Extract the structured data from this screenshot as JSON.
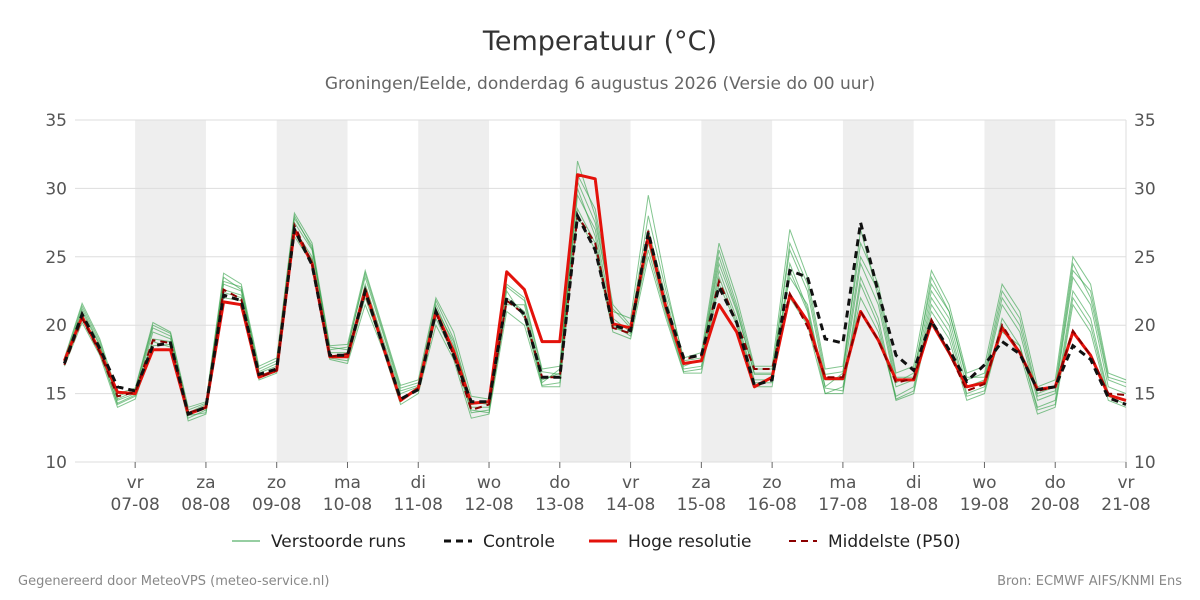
{
  "colors": {
    "perturbed": "#2e9e45",
    "control": "#111111",
    "hires": "#e3120b",
    "median": "#8b0000",
    "weekend_band": "#eeeeee",
    "grid": "#dddddd"
  },
  "footer": {
    "left": "Gegenereerd door MeteoVPS (meteo-service.nl)",
    "right": "Bron: ECMWF AIFS/KNMI Ens"
  },
  "chart_data": {
    "type": "line",
    "title": "Temperatuur (°C)",
    "subtitle": "Groningen/Eelde, donderdag  6 augustus 2026 (Versie do 00 uur)",
    "ylim": [
      10,
      35
    ],
    "yticks": [
      10,
      15,
      20,
      25,
      30,
      35
    ],
    "x_range_days": [
      0.15,
      15.0
    ],
    "day_ticks": [
      {
        "day": 1,
        "weekday": "vr",
        "date": "07-08"
      },
      {
        "day": 2,
        "weekday": "za",
        "date": "08-08"
      },
      {
        "day": 3,
        "weekday": "zo",
        "date": "09-08"
      },
      {
        "day": 4,
        "weekday": "ma",
        "date": "10-08"
      },
      {
        "day": 5,
        "weekday": "di",
        "date": "11-08"
      },
      {
        "day": 6,
        "weekday": "wo",
        "date": "12-08"
      },
      {
        "day": 7,
        "weekday": "do",
        "date": "13-08"
      },
      {
        "day": 8,
        "weekday": "vr",
        "date": "14-08"
      },
      {
        "day": 9,
        "weekday": "za",
        "date": "15-08"
      },
      {
        "day": 10,
        "weekday": "zo",
        "date": "16-08"
      },
      {
        "day": 11,
        "weekday": "ma",
        "date": "17-08"
      },
      {
        "day": 12,
        "weekday": "di",
        "date": "18-08"
      },
      {
        "day": 13,
        "weekday": "wo",
        "date": "19-08"
      },
      {
        "day": 14,
        "weekday": "do",
        "date": "20-08"
      },
      {
        "day": 15,
        "weekday": "vr",
        "date": "21-08"
      }
    ],
    "shaded_days": [
      [
        1,
        2
      ],
      [
        3,
        4
      ],
      [
        5,
        6
      ],
      [
        7,
        8
      ],
      [
        9,
        10
      ],
      [
        11,
        12
      ],
      [
        13,
        14
      ]
    ],
    "grid": true,
    "legend_position": "bottom",
    "x": [
      0.0,
      0.25,
      0.5,
      0.75,
      1.0,
      1.25,
      1.5,
      1.75,
      2.0,
      2.25,
      2.5,
      2.75,
      3.0,
      3.25,
      3.5,
      3.75,
      4.0,
      4.25,
      4.5,
      4.75,
      5.0,
      5.25,
      5.5,
      5.75,
      6.0,
      6.25,
      6.5,
      6.75,
      7.0,
      7.25,
      7.5,
      7.75,
      8.0,
      8.25,
      8.5,
      8.75,
      9.0,
      9.25,
      9.5,
      9.75,
      10.0,
      10.25,
      10.5,
      10.75,
      11.0,
      11.25,
      11.5,
      11.75,
      12.0,
      12.25,
      12.5,
      12.75,
      13.0,
      13.25,
      13.5,
      13.75,
      14.0,
      14.25,
      14.5,
      14.75,
      15.0
    ],
    "series": [
      {
        "name": "Verstoorde runs",
        "style": "ensemble",
        "members": [
          [
            17.3,
            21.0,
            18.5,
            14.5,
            15.0,
            19.5,
            19.0,
            13.5,
            14.0,
            23.0,
            22.5,
            16.5,
            17.0,
            27.5,
            25.5,
            18.0,
            18.0,
            23.0,
            19.0,
            15.0,
            15.5,
            21.5,
            18.5,
            14.0,
            14.0,
            22.0,
            21.0,
            16.0,
            16.5,
            29.5,
            27.0,
            20.5,
            19.5,
            26.5,
            21.5,
            17.0,
            17.5,
            24.5,
            21.0,
            16.5,
            16.5,
            25.5,
            22.5,
            16.0,
            16.0,
            24.5,
            21.5,
            15.5,
            16.0,
            22.5,
            20.5,
            15.5,
            16.0,
            21.5,
            19.5,
            14.5,
            15.0,
            23.5,
            21.5,
            15.5,
            15.0
          ],
          [
            17.0,
            20.2,
            17.8,
            14.0,
            14.6,
            18.5,
            18.6,
            13.0,
            13.5,
            22.0,
            21.8,
            16.0,
            16.5,
            26.5,
            24.5,
            17.5,
            17.2,
            21.5,
            18.2,
            14.2,
            15.0,
            20.0,
            17.5,
            13.2,
            13.5,
            21.0,
            20.0,
            15.5,
            15.5,
            28.0,
            25.5,
            19.5,
            19.0,
            25.0,
            20.5,
            16.5,
            16.5,
            23.0,
            20.0,
            15.5,
            15.5,
            24.0,
            21.0,
            15.0,
            15.0,
            23.0,
            20.0,
            14.5,
            15.0,
            21.0,
            19.0,
            14.5,
            15.0,
            20.0,
            18.0,
            13.5,
            14.0,
            21.5,
            19.5,
            14.5,
            14.0
          ],
          [
            17.6,
            21.6,
            19.0,
            15.0,
            15.4,
            20.2,
            19.5,
            14.0,
            14.4,
            23.8,
            23.0,
            17.0,
            17.6,
            28.2,
            26.0,
            18.5,
            18.6,
            24.0,
            19.8,
            15.6,
            16.0,
            22.0,
            19.5,
            14.8,
            14.6,
            23.0,
            22.0,
            16.8,
            17.0,
            31.0,
            28.5,
            21.5,
            20.0,
            28.0,
            22.5,
            17.6,
            18.0,
            26.0,
            22.0,
            17.0,
            17.0,
            27.0,
            23.5,
            16.8,
            17.0,
            26.0,
            23.0,
            16.5,
            17.0,
            24.0,
            21.5,
            16.5,
            17.0,
            23.0,
            21.0,
            15.5,
            16.0,
            25.0,
            23.0,
            16.5,
            16.0
          ],
          [
            17.2,
            20.8,
            18.2,
            14.2,
            14.8,
            19.0,
            18.8,
            13.2,
            13.8,
            22.6,
            22.2,
            16.3,
            16.8,
            27.0,
            25.0,
            17.8,
            17.6,
            22.5,
            18.6,
            14.6,
            15.2,
            21.0,
            18.0,
            13.6,
            13.8,
            21.5,
            21.5,
            16.2,
            16.2,
            30.0,
            26.5,
            20.0,
            19.2,
            26.0,
            21.0,
            16.8,
            17.0,
            24.0,
            20.5,
            16.0,
            16.0,
            22.0,
            20.0,
            15.0,
            15.5,
            22.0,
            19.5,
            14.8,
            15.5,
            22.0,
            20.0,
            15.0,
            15.5,
            19.5,
            18.5,
            14.0,
            14.5,
            22.5,
            20.5,
            15.0,
            14.5
          ],
          [
            17.4,
            21.2,
            18.6,
            14.6,
            15.2,
            19.8,
            19.2,
            13.6,
            14.2,
            23.2,
            22.8,
            16.6,
            17.2,
            27.8,
            25.8,
            18.2,
            18.4,
            23.5,
            19.4,
            15.2,
            15.6,
            21.8,
            19.0,
            14.4,
            14.2,
            22.5,
            20.5,
            15.8,
            16.8,
            32.0,
            28.0,
            21.0,
            20.5,
            29.5,
            23.0,
            17.4,
            17.6,
            25.5,
            21.5,
            16.8,
            16.8,
            23.5,
            21.5,
            15.5,
            16.5,
            27.0,
            22.0,
            15.8,
            16.5,
            23.0,
            21.0,
            16.0,
            16.5,
            22.5,
            20.5,
            15.0,
            15.5,
            24.5,
            22.0,
            16.0,
            15.5
          ],
          [
            17.1,
            20.5,
            18.0,
            14.3,
            14.9,
            18.8,
            18.4,
            13.4,
            13.6,
            22.4,
            22.0,
            16.2,
            16.6,
            26.8,
            24.8,
            17.6,
            17.4,
            22.0,
            18.4,
            14.4,
            15.4,
            20.5,
            17.8,
            13.8,
            13.6,
            21.8,
            20.8,
            15.6,
            15.8,
            28.5,
            26.0,
            19.8,
            19.4,
            25.5,
            20.8,
            16.6,
            16.8,
            23.5,
            20.2,
            15.8,
            15.8,
            24.5,
            21.2,
            15.4,
            15.2,
            23.5,
            20.5,
            14.6,
            15.2,
            21.5,
            19.5,
            14.8,
            15.2,
            20.5,
            18.5,
            13.8,
            14.2,
            22.0,
            20.0,
            14.8,
            14.2
          ],
          [
            17.5,
            21.4,
            18.8,
            14.8,
            15.3,
            20.0,
            19.4,
            13.8,
            14.3,
            23.5,
            22.6,
            16.8,
            17.4,
            28.0,
            25.6,
            18.4,
            18.2,
            23.8,
            19.6,
            15.4,
            15.8,
            21.2,
            18.8,
            14.2,
            14.4,
            22.8,
            21.8,
            16.6,
            16.4,
            30.5,
            27.5,
            21.2,
            19.8,
            27.0,
            22.0,
            17.2,
            17.4,
            25.0,
            21.2,
            16.4,
            16.4,
            26.0,
            23.0,
            16.4,
            16.6,
            25.0,
            22.5,
            16.2,
            16.2,
            23.5,
            21.0,
            16.2,
            16.2,
            22.0,
            20.0,
            14.8,
            15.2,
            24.0,
            22.5,
            16.2,
            15.8
          ]
        ]
      },
      {
        "name": "Controle",
        "style": "control",
        "values": [
          17.2,
          20.8,
          18.3,
          15.5,
          15.2,
          18.5,
          18.7,
          13.5,
          14.0,
          22.2,
          21.8,
          16.4,
          16.8,
          27.0,
          24.4,
          17.8,
          17.8,
          22.5,
          18.5,
          14.6,
          15.3,
          21.0,
          17.8,
          14.4,
          14.4,
          22.0,
          20.8,
          16.2,
          16.2,
          28.0,
          25.5,
          20.0,
          19.6,
          26.8,
          21.4,
          17.6,
          17.8,
          22.8,
          20.2,
          15.6,
          16.0,
          24.0,
          23.5,
          19.0,
          18.7,
          27.5,
          22.4,
          17.8,
          16.7,
          20.3,
          18.2,
          15.9,
          17.1,
          18.8,
          17.9,
          15.3,
          15.5,
          18.5,
          17.5,
          14.7,
          14.2
        ]
      },
      {
        "name": "Hoge resolutie",
        "style": "hires",
        "values": [
          17.4,
          20.6,
          18.1,
          15.1,
          15.0,
          18.2,
          18.2,
          13.5,
          14.0,
          21.7,
          21.5,
          16.2,
          16.7,
          27.0,
          24.5,
          17.7,
          17.7,
          22.6,
          18.5,
          14.5,
          15.4,
          21.0,
          18.1,
          14.3,
          14.4,
          23.9,
          22.6,
          18.8,
          18.8,
          31.0,
          30.7,
          20.1,
          19.8,
          26.5,
          21.3,
          17.2,
          17.4,
          21.5,
          19.5,
          15.5,
          16.2,
          22.2,
          20.3,
          16.1,
          16.1,
          21.0,
          18.9,
          16.0,
          16.0,
          20.2,
          18.0,
          15.5,
          15.8,
          19.8,
          18.0,
          15.3,
          15.5,
          19.5,
          17.8,
          14.9,
          14.5
        ]
      },
      {
        "name": "Middelste (P50)",
        "style": "median",
        "values": [
          17.1,
          20.5,
          18.0,
          14.8,
          15.1,
          18.9,
          18.7,
          13.6,
          14.0,
          22.6,
          21.9,
          16.2,
          16.7,
          27.3,
          24.5,
          17.7,
          17.9,
          22.3,
          18.5,
          14.6,
          15.3,
          20.9,
          17.8,
          13.8,
          14.2,
          21.8,
          20.8,
          16.2,
          16.2,
          28.0,
          26.0,
          19.8,
          19.4,
          26.9,
          21.4,
          17.5,
          17.8,
          23.2,
          20.2,
          16.8,
          16.8,
          22.3,
          19.9,
          16.2,
          16.2,
          21.0,
          18.9,
          15.8,
          16.1,
          20.4,
          18.0,
          15.2,
          15.7,
          20.0,
          18.0,
          15.2,
          15.5,
          19.6,
          17.8,
          15.0,
          14.9
        ]
      }
    ]
  }
}
